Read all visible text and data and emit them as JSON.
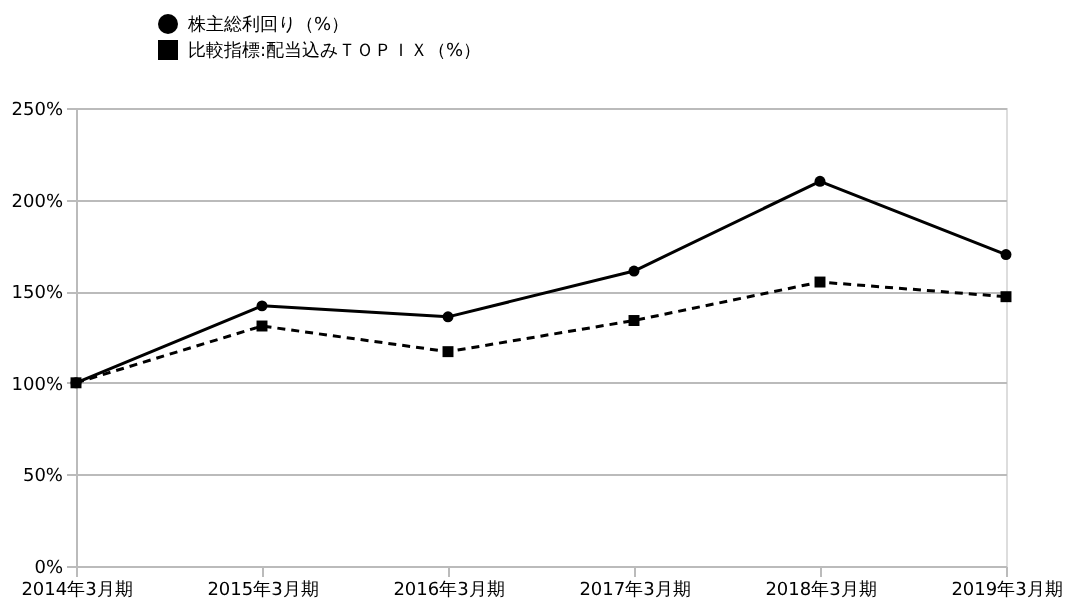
{
  "chart_data": {
    "type": "line",
    "categories": [
      "2014年3月期",
      "2015年3月期",
      "2016年3月期",
      "2017年3月期",
      "2018年3月期",
      "2019年3月期"
    ],
    "series": [
      {
        "name": "株主総利回り（%）",
        "color": "#000000",
        "marker": "circle",
        "line_style": "solid",
        "values": [
          100,
          142,
          136,
          161,
          210,
          170
        ]
      },
      {
        "name": "比較指標:配当込みＴＯＰＩＸ（%）",
        "color": "#000000",
        "marker": "square",
        "line_style": "dashed",
        "values": [
          100,
          131,
          117,
          134,
          155,
          147
        ]
      }
    ],
    "ylim": [
      0,
      250
    ],
    "yticks": [
      {
        "value": 0,
        "label": "0%"
      },
      {
        "value": 50,
        "label": "50%"
      },
      {
        "value": 100,
        "label": "100%"
      },
      {
        "value": 150,
        "label": "150%"
      },
      {
        "value": 200,
        "label": "200%"
      },
      {
        "value": 250,
        "label": "250%"
      }
    ],
    "grid": "y",
    "legend": "top left"
  }
}
